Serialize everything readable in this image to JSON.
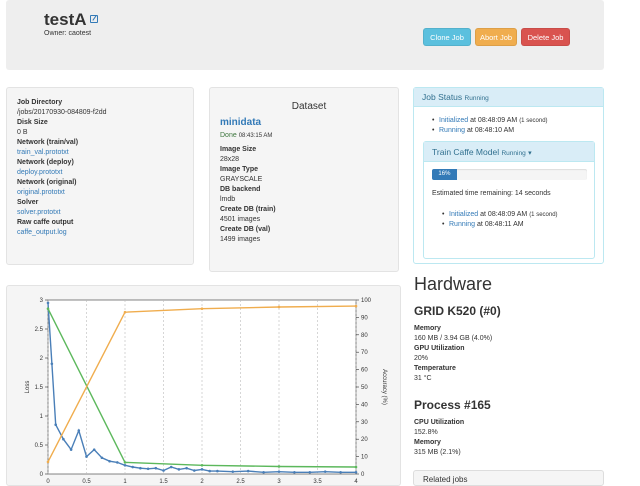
{
  "header": {
    "title": "testA",
    "owner": "Owner: caotest",
    "buttons": {
      "clone": "Clone Job",
      "abort": "Abort Job",
      "delete": "Delete Job"
    }
  },
  "job_info": {
    "directory_label": "Job Directory",
    "directory_value": "/jobs/20170930-084809-f2dd",
    "disk_label": "Disk Size",
    "disk_value": "0 B",
    "net_train_label": "Network (train/val)",
    "net_train_value": "train_val.prototxt",
    "net_deploy_label": "Network (deploy)",
    "net_deploy_value": "deploy.prototxt",
    "net_orig_label": "Network (original)",
    "net_orig_value": "original.prototxt",
    "solver_label": "Solver",
    "solver_value": "solver.prototxt",
    "raw_label": "Raw caffe output",
    "raw_value": "caffe_output.log"
  },
  "dataset": {
    "heading": "Dataset",
    "name": "minidata",
    "status": "Done",
    "time": "08:43:15 AM",
    "image_size_label": "Image Size",
    "image_size_value": "28x28",
    "image_type_label": "Image Type",
    "image_type_value": "GRAYSCALE",
    "backend_label": "DB backend",
    "backend_value": "lmdb",
    "train_label": "Create DB (train)",
    "train_value": "4501 images",
    "val_label": "Create DB (val)",
    "val_value": "1499 images"
  },
  "job_status": {
    "heading": "Job Status",
    "state": "Running",
    "events": [
      {
        "status": "Initialized",
        "time": "at 08:48:09 AM",
        "duration": "(1 second)"
      },
      {
        "status": "Running",
        "time": "at 08:48:10 AM",
        "duration": ""
      }
    ],
    "task": {
      "heading": "Train Caffe Model",
      "state": "Running",
      "caret": "▾",
      "progress_label": "16%",
      "progress": 0.16,
      "eta": "Estimated time remaining: 14 seconds",
      "events": [
        {
          "status": "Initialized",
          "time": "at 08:48:09 AM",
          "duration": "(1 second)"
        },
        {
          "status": "Running",
          "time": "at 08:48:11 AM",
          "duration": ""
        }
      ]
    }
  },
  "hardware": {
    "title": "Hardware",
    "gpu_title": "GRID K520 (#0)",
    "memory_label": "Memory",
    "memory_value": "160 MB / 3.94 GB (4.0%)",
    "util_label": "GPU Utilization",
    "util_value": "20%",
    "temp_label": "Temperature",
    "temp_value": "31 °C"
  },
  "process": {
    "title": "Process #165",
    "cpu_label": "CPU Utilization",
    "cpu_value": "152.8%",
    "mem_label": "Memory",
    "mem_value": "315 MB (2.1%)"
  },
  "related": {
    "label": "Related jobs"
  },
  "chart_data": {
    "type": "line",
    "ylabel": "Loss",
    "y2label": "Accuracy (%)",
    "xlim": [
      0,
      4
    ],
    "ylim": [
      0,
      3
    ],
    "y2lim": [
      0,
      100
    ],
    "xticks": [
      "0",
      "0.5",
      "1",
      "1.5",
      "2",
      "2.5",
      "3",
      "3.5",
      "4"
    ],
    "yticks": [
      "0",
      "0.5",
      "1",
      "1.5",
      "2",
      "2.5",
      "3"
    ],
    "y2ticks": [
      "0",
      "10",
      "20",
      "30",
      "40",
      "50",
      "60",
      "70",
      "80",
      "90",
      "100"
    ],
    "grid": true,
    "colors": {
      "train_loss": "#4a7fb8",
      "val_loss": "#5cb85c",
      "accuracy": "#f0ad4e"
    },
    "series": [
      {
        "key": "train_loss",
        "axis": "left",
        "x": [
          0,
          0.05,
          0.1,
          0.2,
          0.3,
          0.4,
          0.5,
          0.6,
          0.7,
          0.8,
          0.9,
          1.0,
          1.1,
          1.2,
          1.3,
          1.4,
          1.5,
          1.6,
          1.7,
          1.8,
          1.9,
          2.0,
          2.1,
          2.2,
          2.4,
          2.6,
          2.8,
          3.0,
          3.2,
          3.4,
          3.6,
          3.8,
          4.0
        ],
        "y": [
          2.95,
          1.9,
          0.85,
          0.6,
          0.42,
          0.75,
          0.3,
          0.42,
          0.28,
          0.22,
          0.2,
          0.15,
          0.12,
          0.1,
          0.09,
          0.1,
          0.06,
          0.12,
          0.08,
          0.1,
          0.06,
          0.08,
          0.05,
          0.05,
          0.04,
          0.05,
          0.03,
          0.04,
          0.03,
          0.03,
          0.04,
          0.03,
          0.03
        ]
      },
      {
        "key": "val_loss",
        "axis": "left",
        "x": [
          0,
          1,
          2,
          3,
          4
        ],
        "y": [
          2.85,
          0.2,
          0.15,
          0.13,
          0.12
        ]
      },
      {
        "key": "accuracy",
        "axis": "right",
        "x": [
          0,
          1,
          2,
          3,
          4
        ],
        "y": [
          7,
          93,
          95,
          96,
          96.5
        ]
      }
    ]
  }
}
